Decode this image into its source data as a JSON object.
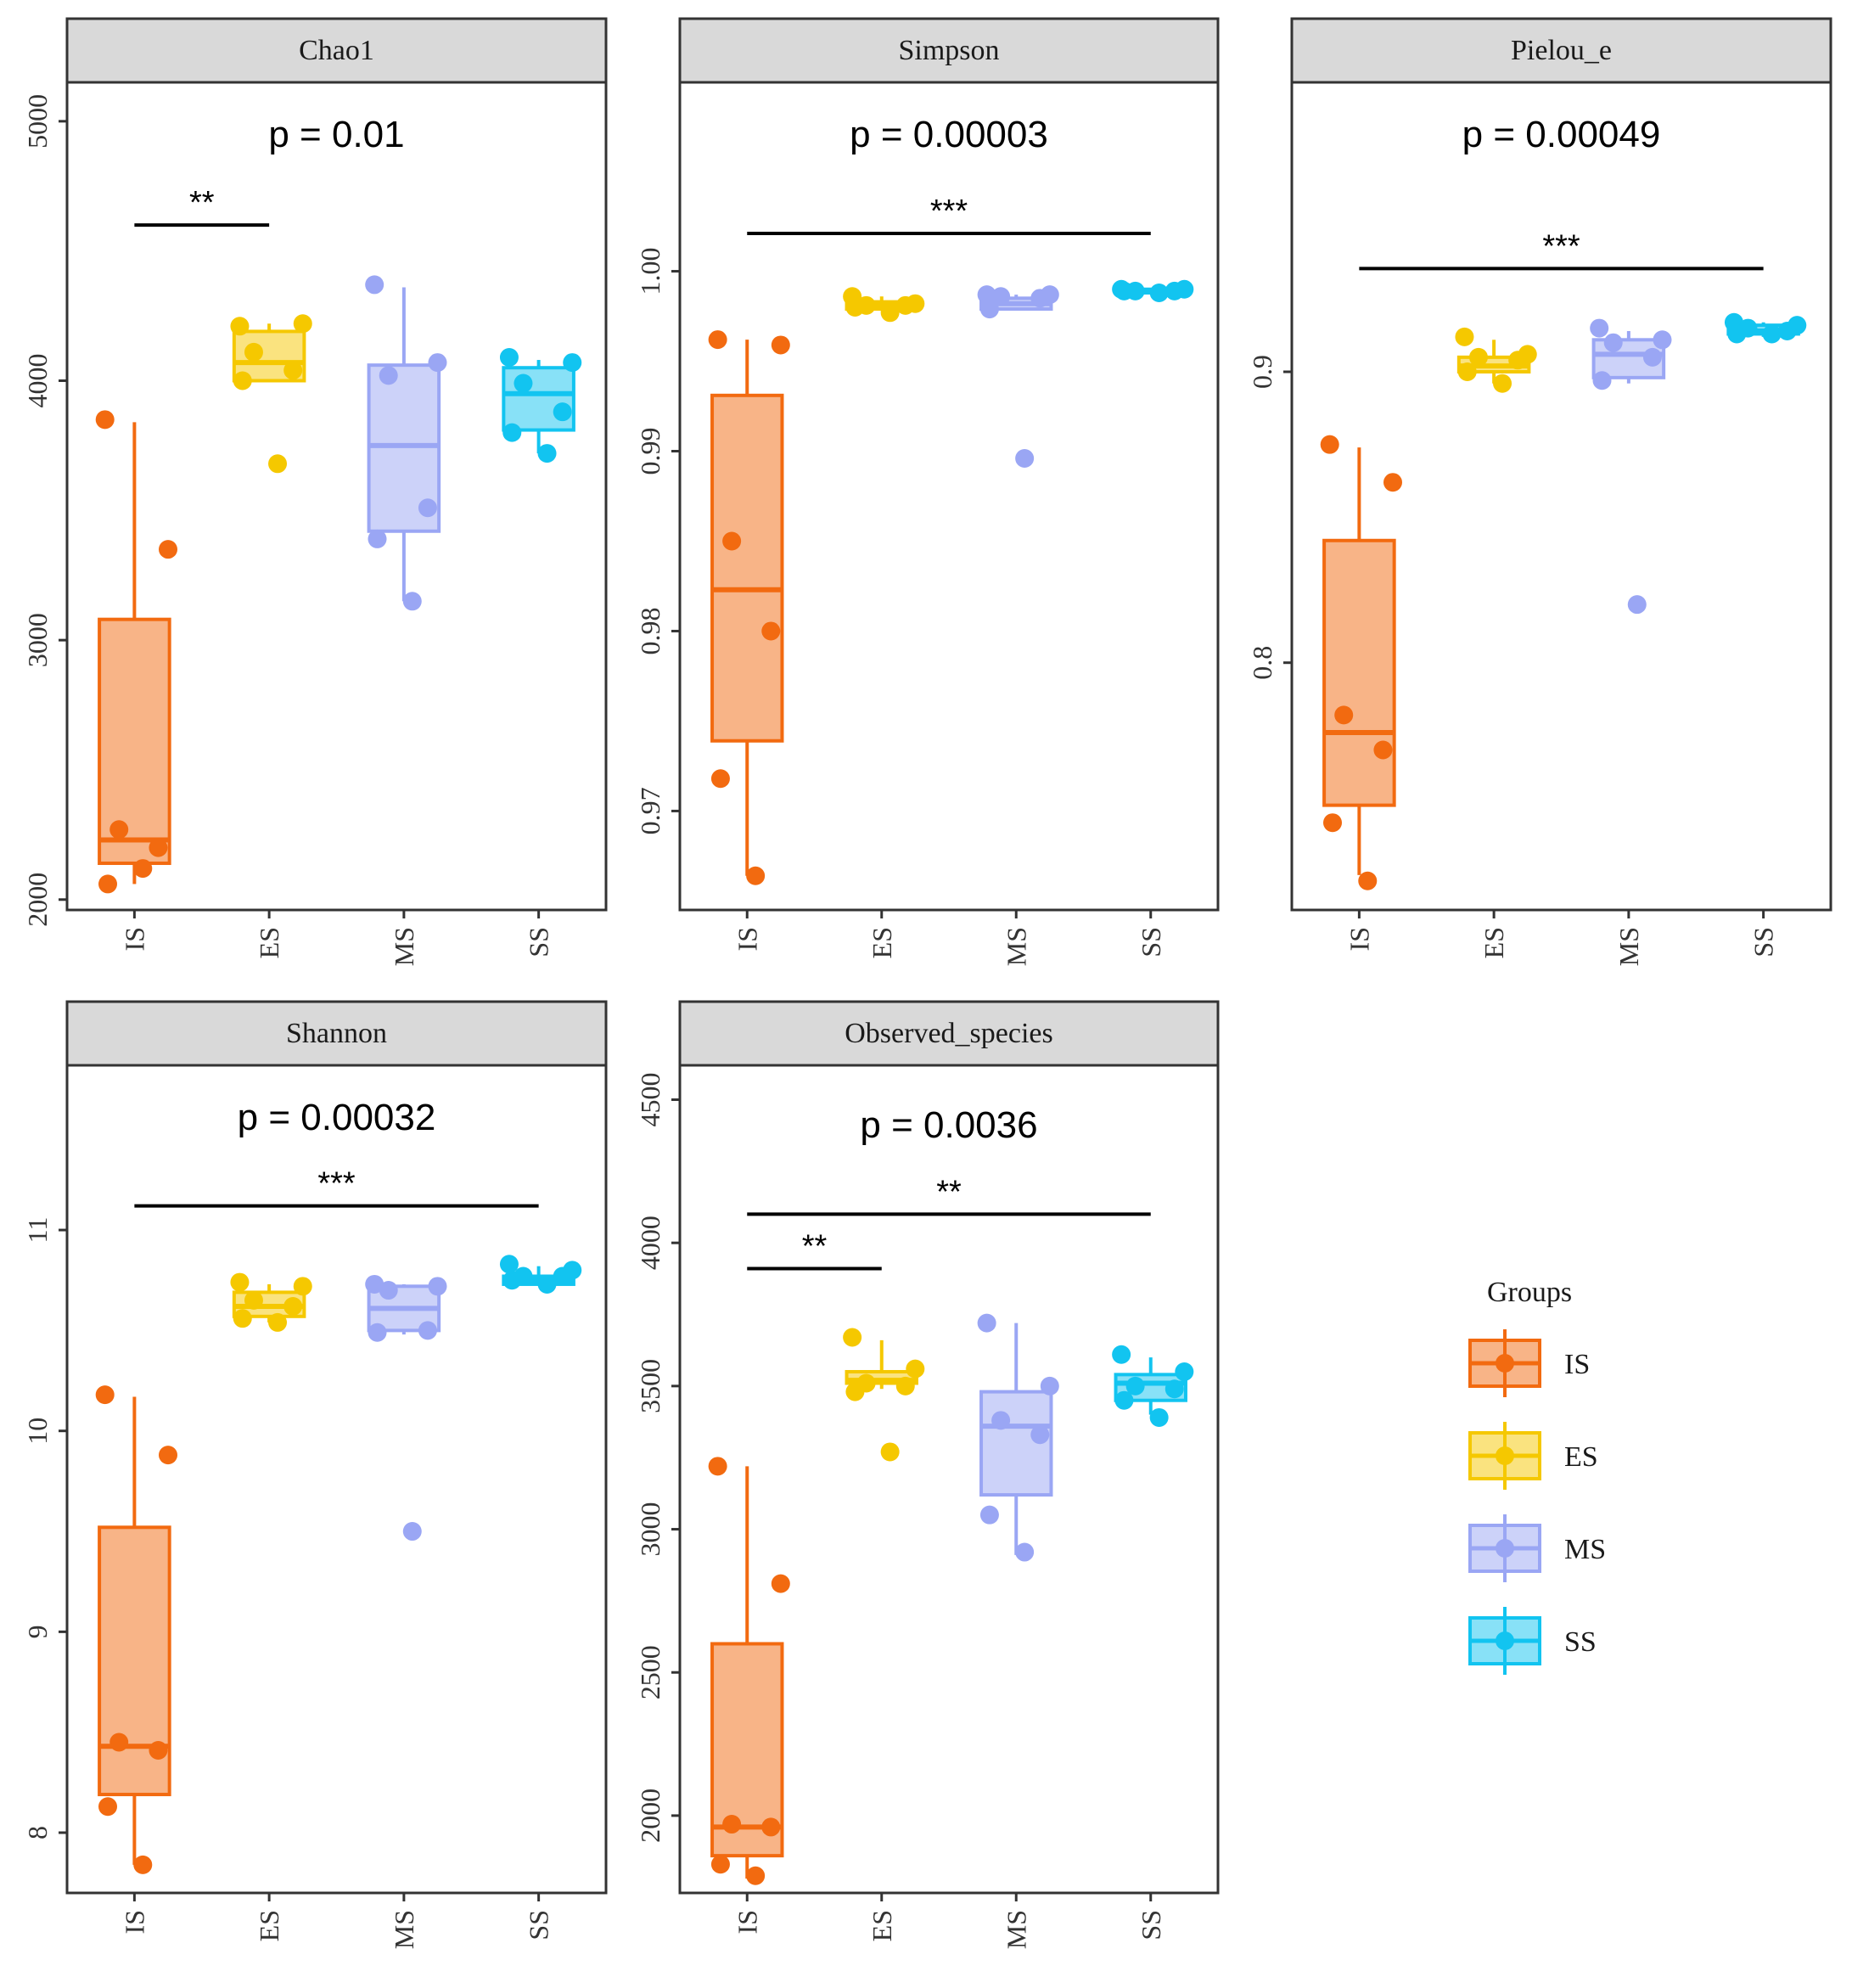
{
  "colors": {
    "IS": "#f26a10",
    "ES": "#f5c800",
    "MS": "#9aa6f4",
    "SS": "#12c4f0",
    "strip_fill": "#d9d9d9"
  },
  "chart_data": [
    {
      "type": "boxplot",
      "title": "Chao1",
      "p_label": "p = 0.01",
      "categories": [
        "IS",
        "ES",
        "MS",
        "SS"
      ],
      "ylim": [
        1960,
        5150
      ],
      "yticks": [
        2000,
        3000,
        4000,
        5000
      ],
      "ytick_labels": [
        "2000",
        "3000",
        "4000",
        "5000"
      ],
      "boxes": [
        {
          "group": "IS",
          "q1": 2140,
          "median": 2230,
          "q3": 3080,
          "wlo": 2060,
          "whi": 3840,
          "points": [
            3850,
            3350,
            2270,
            2200,
            2060,
            2120
          ]
        },
        {
          "group": "ES",
          "q1": 4000,
          "median": 4070,
          "q3": 4190,
          "wlo": 4000,
          "whi": 4220,
          "points": [
            4210,
            4220,
            4110,
            4040,
            4000,
            3680
          ]
        },
        {
          "group": "MS",
          "q1": 3420,
          "median": 3750,
          "q3": 4060,
          "wlo": 3150,
          "whi": 4360,
          "points": [
            4370,
            4070,
            4020,
            3510,
            3390,
            3150
          ]
        },
        {
          "group": "SS",
          "q1": 3810,
          "median": 3950,
          "q3": 4050,
          "wlo": 3720,
          "whi": 4080,
          "points": [
            4090,
            4070,
            3990,
            3880,
            3800,
            3720
          ]
        }
      ],
      "sig": [
        {
          "from": "IS",
          "to": "ES",
          "y": 4600,
          "label": "**"
        }
      ]
    },
    {
      "type": "boxplot",
      "title": "Simpson",
      "p_label": "p = 0.00003",
      "categories": [
        "IS",
        "ES",
        "MS",
        "SS"
      ],
      "ylim": [
        0.9645,
        1.0105
      ],
      "yticks": [
        0.97,
        0.98,
        0.99,
        1.0
      ],
      "ytick_labels": [
        "0.97",
        "0.98",
        "0.99",
        "1.00"
      ],
      "boxes": [
        {
          "group": "IS",
          "q1": 0.9739,
          "median": 0.9823,
          "q3": 0.9931,
          "wlo": 0.9664,
          "whi": 0.9962,
          "points": [
            0.9962,
            0.9959,
            0.985,
            0.98,
            0.9718,
            0.9664
          ]
        },
        {
          "group": "ES",
          "q1": 0.9979,
          "median": 0.9981,
          "q3": 0.9983,
          "wlo": 0.9978,
          "whi": 0.9986,
          "points": [
            0.9986,
            0.9982,
            0.9981,
            0.9981,
            0.998,
            0.9977
          ]
        },
        {
          "group": "MS",
          "q1": 0.9979,
          "median": 0.9982,
          "q3": 0.9985,
          "wlo": 0.9979,
          "whi": 0.9987,
          "points": [
            0.9987,
            0.9987,
            0.9986,
            0.9985,
            0.9979,
            0.9896
          ]
        },
        {
          "group": "SS",
          "q1": 0.9988,
          "median": 0.9989,
          "q3": 0.999,
          "wlo": 0.9988,
          "whi": 0.999,
          "points": [
            0.999,
            0.999,
            0.9989,
            0.9989,
            0.9989,
            0.9988
          ]
        }
      ],
      "sig": [
        {
          "from": "IS",
          "to": "SS",
          "y": 1.0021,
          "label": "***"
        }
      ]
    },
    {
      "type": "boxplot",
      "title": "Pielou_e",
      "p_label": "p = 0.00049",
      "categories": [
        "IS",
        "ES",
        "MS",
        "SS"
      ],
      "ylim": [
        0.715,
        0.9995
      ],
      "yticks": [
        0.8,
        0.9
      ],
      "ytick_labels": [
        "0.8",
        "0.9"
      ],
      "boxes": [
        {
          "group": "IS",
          "q1": 0.751,
          "median": 0.776,
          "q3": 0.842,
          "wlo": 0.727,
          "whi": 0.874,
          "points": [
            0.875,
            0.862,
            0.782,
            0.77,
            0.745,
            0.725
          ]
        },
        {
          "group": "ES",
          "q1": 0.9,
          "median": 0.902,
          "q3": 0.905,
          "wlo": 0.896,
          "whi": 0.911,
          "points": [
            0.912,
            0.906,
            0.905,
            0.904,
            0.9,
            0.896
          ]
        },
        {
          "group": "MS",
          "q1": 0.898,
          "median": 0.906,
          "q3": 0.911,
          "wlo": 0.896,
          "whi": 0.914,
          "points": [
            0.915,
            0.911,
            0.91,
            0.905,
            0.897,
            0.82
          ]
        },
        {
          "group": "SS",
          "q1": 0.913,
          "median": 0.914,
          "q3": 0.916,
          "wlo": 0.912,
          "whi": 0.917,
          "points": [
            0.917,
            0.916,
            0.915,
            0.914,
            0.913,
            0.913
          ]
        }
      ],
      "sig": [
        {
          "from": "IS",
          "to": "SS",
          "y": 0.9355,
          "label": "***"
        }
      ]
    },
    {
      "type": "boxplot",
      "title": "Shannon",
      "p_label": "p = 0.00032",
      "categories": [
        "IS",
        "ES",
        "MS",
        "SS"
      ],
      "ylim": [
        7.7,
        11.82
      ],
      "yticks": [
        8,
        9,
        10,
        11
      ],
      "ytick_labels": [
        "8",
        "9",
        "10",
        "11"
      ],
      "boxes": [
        {
          "group": "IS",
          "q1": 8.19,
          "median": 8.43,
          "q3": 9.52,
          "wlo": 7.84,
          "whi": 10.17,
          "points": [
            10.18,
            9.88,
            8.45,
            8.41,
            8.13,
            7.84
          ]
        },
        {
          "group": "ES",
          "q1": 10.57,
          "median": 10.62,
          "q3": 10.69,
          "wlo": 10.54,
          "whi": 10.73,
          "points": [
            10.74,
            10.72,
            10.65,
            10.62,
            10.56,
            10.54
          ]
        },
        {
          "group": "MS",
          "q1": 10.5,
          "median": 10.61,
          "q3": 10.72,
          "wlo": 10.48,
          "whi": 10.73,
          "points": [
            10.73,
            10.72,
            10.7,
            10.5,
            10.49,
            9.5
          ]
        },
        {
          "group": "SS",
          "q1": 10.73,
          "median": 10.75,
          "q3": 10.77,
          "wlo": 10.73,
          "whi": 10.82,
          "points": [
            10.83,
            10.8,
            10.77,
            10.77,
            10.75,
            10.73
          ]
        }
      ],
      "sig": [
        {
          "from": "IS",
          "to": "SS",
          "y": 11.12,
          "label": "***"
        }
      ]
    },
    {
      "type": "boxplot",
      "title": "Observed_species",
      "p_label": "p = 0.0036",
      "categories": [
        "IS",
        "ES",
        "MS",
        "SS"
      ],
      "ylim": [
        1730,
        4620
      ],
      "yticks": [
        2000,
        2500,
        3000,
        3500,
        4000,
        4500
      ],
      "ytick_labels": [
        "2000",
        "2500",
        "3000",
        "3500",
        "4000",
        "4500"
      ],
      "boxes": [
        {
          "group": "IS",
          "q1": 1860,
          "median": 1960,
          "q3": 2600,
          "wlo": 1780,
          "whi": 3220,
          "points": [
            3220,
            2810,
            1970,
            1960,
            1830,
            1790
          ]
        },
        {
          "group": "ES",
          "q1": 3510,
          "median": 3520,
          "q3": 3550,
          "wlo": 3490,
          "whi": 3660,
          "points": [
            3670,
            3560,
            3510,
            3500,
            3480,
            3270
          ]
        },
        {
          "group": "MS",
          "q1": 3120,
          "median": 3360,
          "q3": 3480,
          "wlo": 2910,
          "whi": 3720,
          "points": [
            3720,
            3500,
            3380,
            3330,
            3050,
            2920
          ]
        },
        {
          "group": "SS",
          "q1": 3450,
          "median": 3510,
          "q3": 3540,
          "wlo": 3400,
          "whi": 3600,
          "points": [
            3610,
            3550,
            3500,
            3490,
            3450,
            3390
          ]
        }
      ],
      "sig": [
        {
          "from": "IS",
          "to": "ES",
          "y": 3910,
          "label": "**"
        },
        {
          "from": "IS",
          "to": "SS",
          "y": 4100,
          "label": "**"
        }
      ]
    }
  ],
  "legend": {
    "title": "Groups",
    "items": [
      "IS",
      "ES",
      "MS",
      "SS"
    ]
  }
}
